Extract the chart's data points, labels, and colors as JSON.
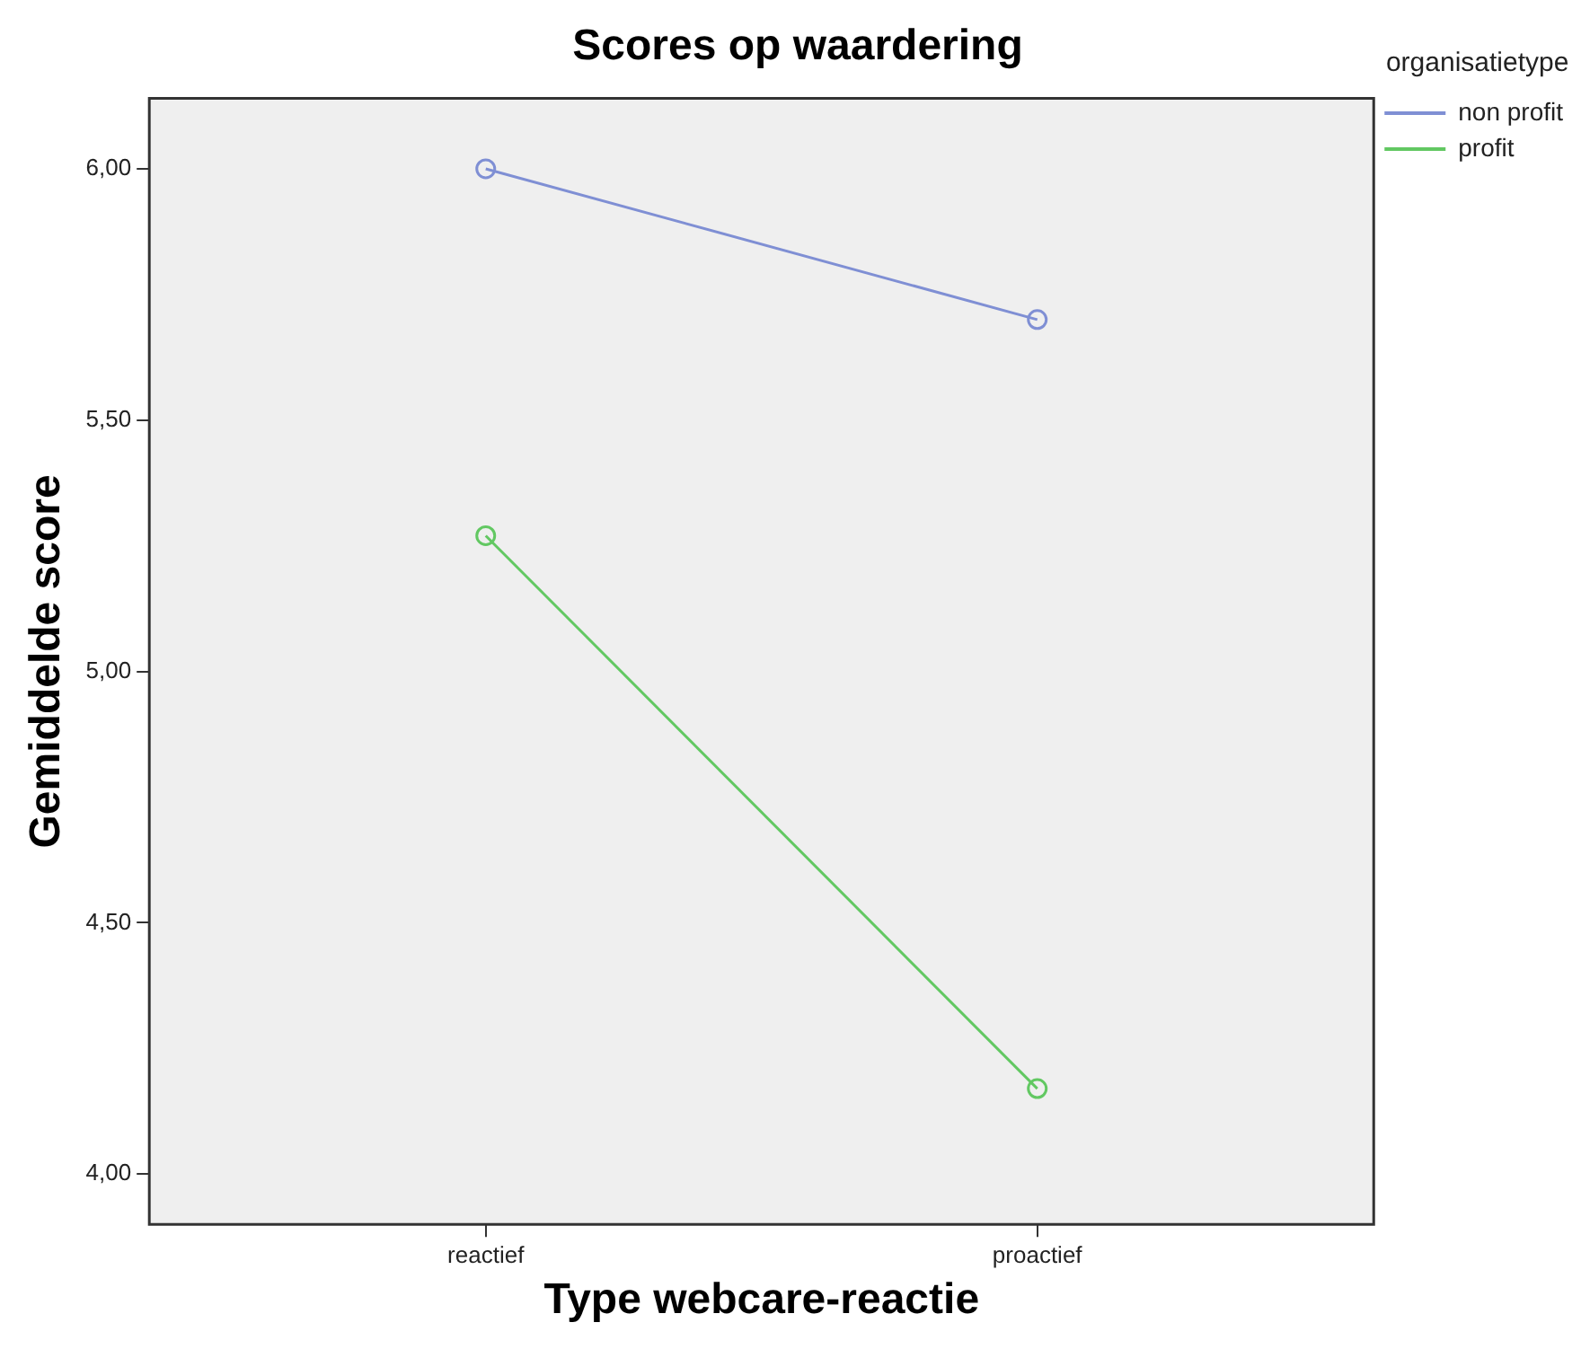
{
  "chart_data": {
    "type": "line",
    "title": "Scores op waardering",
    "xlabel": "Type webcare-reactie",
    "ylabel": "Gemiddelde score",
    "legend_title": "organisatietype",
    "categories": [
      "reactief",
      "proactief"
    ],
    "series": [
      {
        "name": "non profit",
        "color": "#7f8fd4",
        "values": [
          6.0,
          5.7
        ]
      },
      {
        "name": "profit",
        "color": "#62c862",
        "values": [
          5.27,
          4.17
        ]
      }
    ],
    "ylim": [
      3.9,
      6.14
    ],
    "yticks": [
      {
        "value": 4,
        "label": "4,00"
      },
      {
        "value": 4.5,
        "label": "4,50"
      },
      {
        "value": 5,
        "label": "5,00"
      },
      {
        "value": 5.5,
        "label": "5,50"
      },
      {
        "value": 6,
        "label": "6,00"
      }
    ],
    "grid": false,
    "legend": "top right",
    "marker": "circle",
    "line_style": "solid"
  }
}
